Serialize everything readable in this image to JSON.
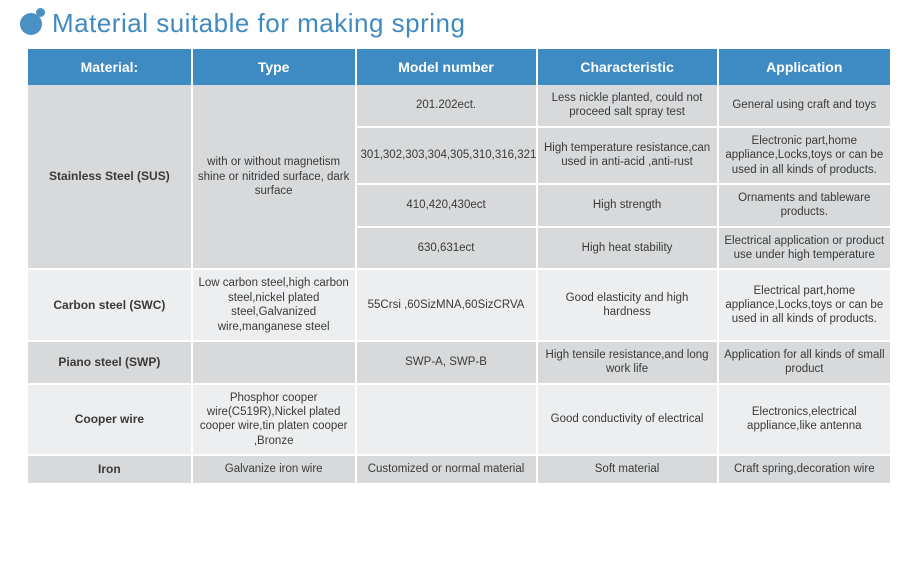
{
  "page_title": "Material suitable for making spring",
  "colors": {
    "accent": "#418ac0",
    "header_bg": "#3e8bc4",
    "band_a": "#d7d9db",
    "band_b": "#edeeef"
  },
  "columns": [
    "Material:",
    "Type",
    "Model number",
    "Characteristic",
    "Application"
  ],
  "rows": [
    {
      "material": "Stainless Steel (SUS)",
      "type": "with or without magnetism shine or nitrided surface, dark surface",
      "variants": [
        {
          "model": "201.202ect.",
          "char": "Less nickle planted, could not proceed salt spray test",
          "app": "General using craft and toys"
        },
        {
          "model": "301,302,303,304,305,310,316,321",
          "char": "High temperature resistance,can used in anti-acid ,anti-rust",
          "app": "Electronic part,home appliance,Locks,toys or can be used in all kinds of products."
        },
        {
          "model": "410,420,430ect",
          "char": "High strength",
          "app": "Ornaments and tableware products."
        },
        {
          "model": "630,631ect",
          "char": "High heat stability",
          "app": "Electrical application or product use under high temperature"
        }
      ]
    },
    {
      "material": "Carbon steel (SWC)",
      "type": "Low carbon steel,high carbon steel,nickel plated steel,Galvanized wire,manganese steel",
      "variants": [
        {
          "model": "55Crsi ,60SizMNA,60SizCRVA",
          "char": "Good  elasticity and high hardness",
          "app": "Electrical part,home appliance,Locks,toys or can be used in all kinds of products."
        }
      ]
    },
    {
      "material": "Piano steel (SWP)",
      "type": "",
      "variants": [
        {
          "model": "SWP-A, SWP-B",
          "char": "High tensile resistance,and long work life",
          "app": "Application for all kinds of small product"
        }
      ]
    },
    {
      "material": "Cooper wire",
      "type": "Phosphor cooper wire(C519R),Nickel plated cooper wire,tin platen cooper ,Bronze",
      "variants": [
        {
          "model": "",
          "char": "Good conductivity of electrical",
          "app": "Electronics,electrical appliance,like antenna"
        }
      ]
    },
    {
      "material": "Iron",
      "type": "Galvanize iron wire",
      "variants": [
        {
          "model": "Customized or normal material",
          "char": "Soft material",
          "app": "Craft spring,decoration wire"
        }
      ]
    }
  ]
}
